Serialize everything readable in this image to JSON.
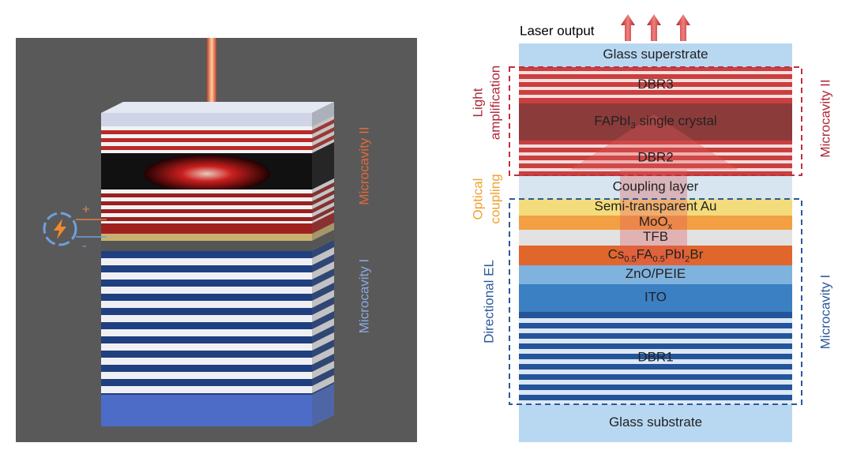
{
  "left_panel": {
    "polarity": {
      "plus": "+",
      "minus": "-"
    },
    "labels": [
      "Microcavity II",
      "Microcavity I"
    ]
  },
  "right_panel": {
    "laser_output": "Laser output",
    "layers": [
      [
        {
          "text": "Glass superstrate"
        }
      ],
      [
        {
          "text": "DBR3"
        }
      ],
      [
        {
          "text": "FAPbI"
        },
        {
          "sub": "3"
        },
        {
          "text": " single crystal"
        }
      ],
      [
        {
          "text": "DBR2"
        }
      ],
      [
        {
          "text": "Coupling layer"
        }
      ],
      [
        {
          "text": "Semi-transparent Au"
        }
      ],
      [
        {
          "text": "MoO"
        },
        {
          "sub": "x"
        }
      ],
      [
        {
          "text": "TFB"
        }
      ],
      [
        {
          "text": "Cs"
        },
        {
          "sub": "0.5"
        },
        {
          "text": "FA"
        },
        {
          "sub": "0.5"
        },
        {
          "text": "PbI"
        },
        {
          "sub": "2"
        },
        {
          "text": "Br"
        }
      ],
      [
        {
          "text": "ZnO/PEIE"
        }
      ],
      [
        {
          "text": "ITO"
        }
      ],
      [
        {
          "text": "DBR1"
        }
      ],
      [
        {
          "text": "Glass substrate"
        }
      ]
    ],
    "side_labels": {
      "light_amplification": [
        "Light",
        "amplification"
      ],
      "optical_coupling": [
        "Optical",
        "coupling"
      ],
      "directional_el": "Directional EL",
      "microcavity_2": "Microcavity II",
      "microcavity_1": "Microcavity I"
    }
  }
}
